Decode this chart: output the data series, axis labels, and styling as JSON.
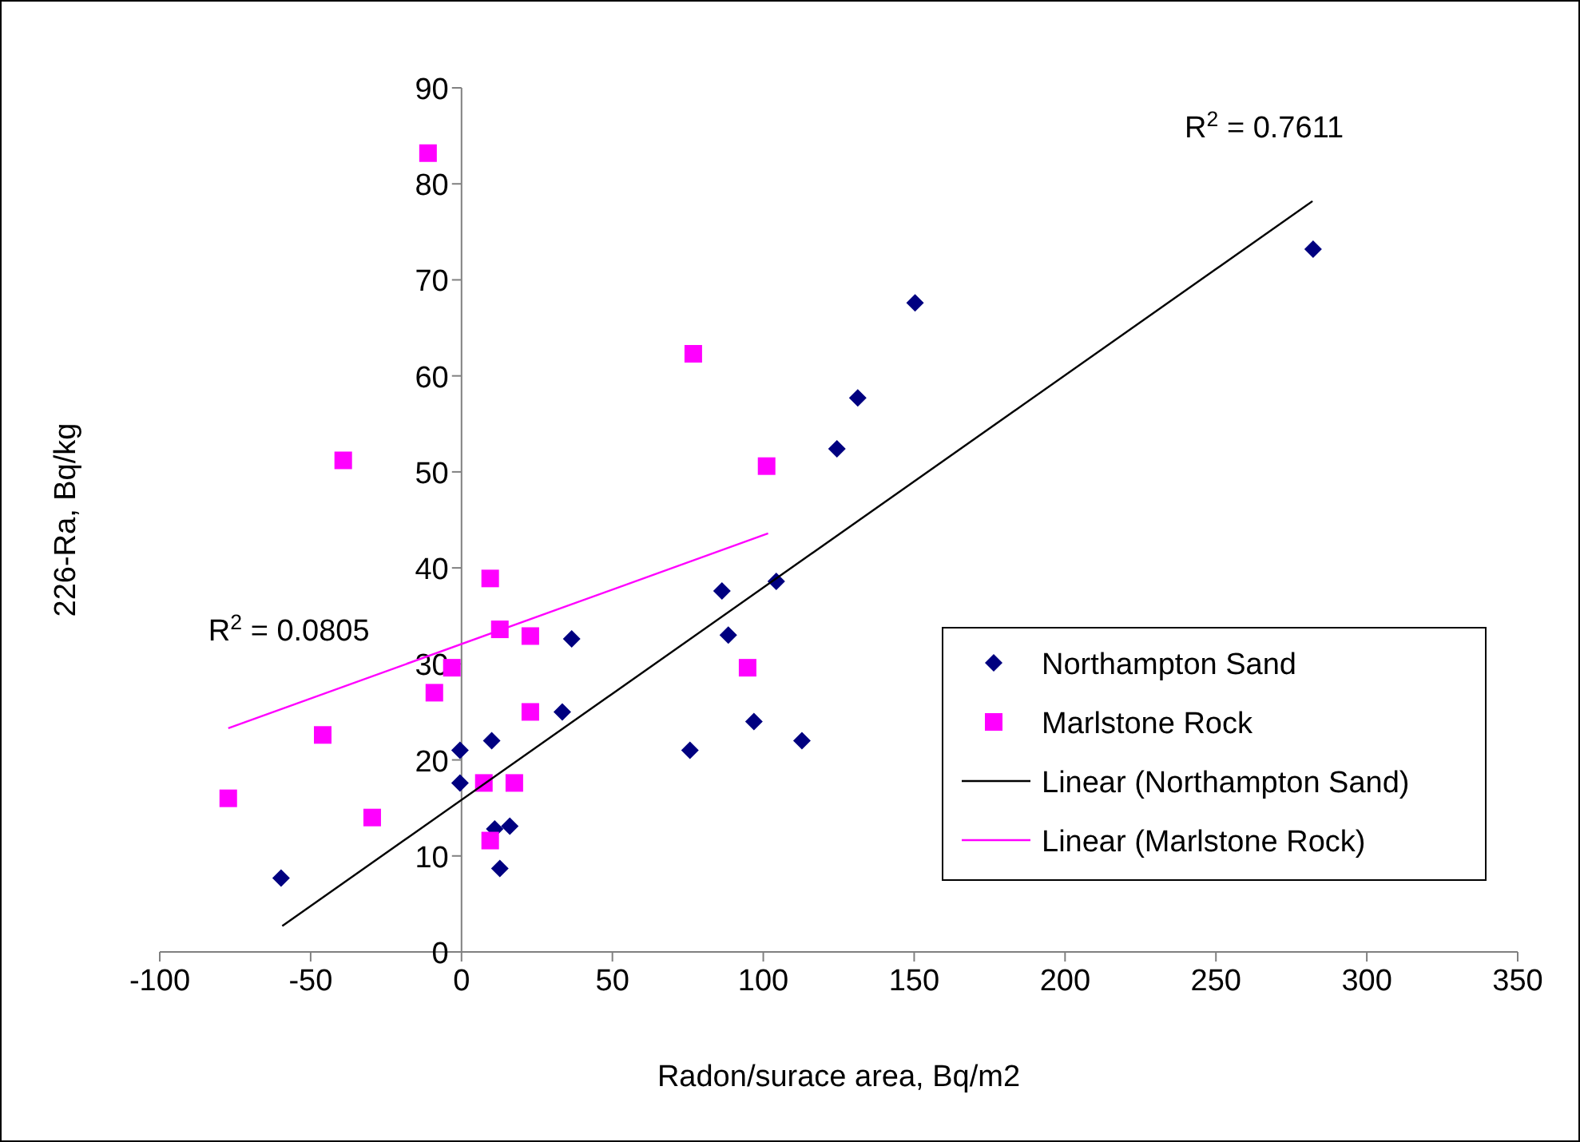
{
  "chart_data": {
    "type": "scatter",
    "xlabel": "Radon/surace area, Bq/m2",
    "ylabel": "226-Ra, Bq/kg",
    "xlim": [
      -100,
      350
    ],
    "xticks": [
      -100,
      -50,
      0,
      50,
      100,
      150,
      200,
      250,
      300,
      350
    ],
    "ylim": [
      0,
      90
    ],
    "yticks": [
      0,
      10,
      20,
      30,
      40,
      50,
      60,
      70,
      80,
      90
    ],
    "grid": false,
    "legend": "bottom right",
    "series": [
      {
        "name": "Northampton Sand",
        "marker": "diamond",
        "color": "#000080",
        "x": [
          -59.8,
          -0.5,
          -0.5,
          10,
          11,
          12.7,
          16,
          33.4,
          36.5,
          75.7,
          86.3,
          88.4,
          96.9,
          104.3,
          112.8,
          124.4,
          131.3,
          150.3,
          282.2
        ],
        "values": [
          7.7,
          21,
          17.6,
          22,
          12.8,
          8.7,
          13.1,
          25,
          32.6,
          21,
          37.6,
          33,
          24,
          38.6,
          22,
          52.4,
          57.7,
          67.6,
          73.2
        ]
      },
      {
        "name": "Marlstone Rock",
        "marker": "square",
        "color": "#ff00ff",
        "x": [
          -77.3,
          -46,
          -39.2,
          -29.6,
          -11.1,
          -9,
          -3.2,
          7.4,
          9.5,
          9.5,
          12.7,
          17.5,
          22.8,
          22.8,
          76.8,
          94.8,
          101.1
        ],
        "values": [
          16,
          22.6,
          51.2,
          14,
          83.2,
          27,
          29.6,
          17.6,
          38.9,
          11.6,
          33.6,
          17.6,
          32.9,
          25,
          62.3,
          29.6,
          50.6
        ]
      },
      {
        "name": "Linear (Northampton Sand)",
        "type": "line",
        "marker": "none",
        "line_style": "solid",
        "color": "#000000",
        "x": [
          -59.4,
          282
        ],
        "values": [
          2.7,
          78.2
        ]
      },
      {
        "name": "Linear (Marlstone Rock)",
        "type": "line",
        "marker": "none",
        "line_style": "solid",
        "color": "#ff00ff",
        "x": [
          -77.3,
          101.6
        ],
        "values": [
          23.3,
          43.6
        ]
      }
    ],
    "annotations": [
      "R$^{2}$ = 0.7611",
      "R$^{2}$ = 0.0805"
    ]
  }
}
